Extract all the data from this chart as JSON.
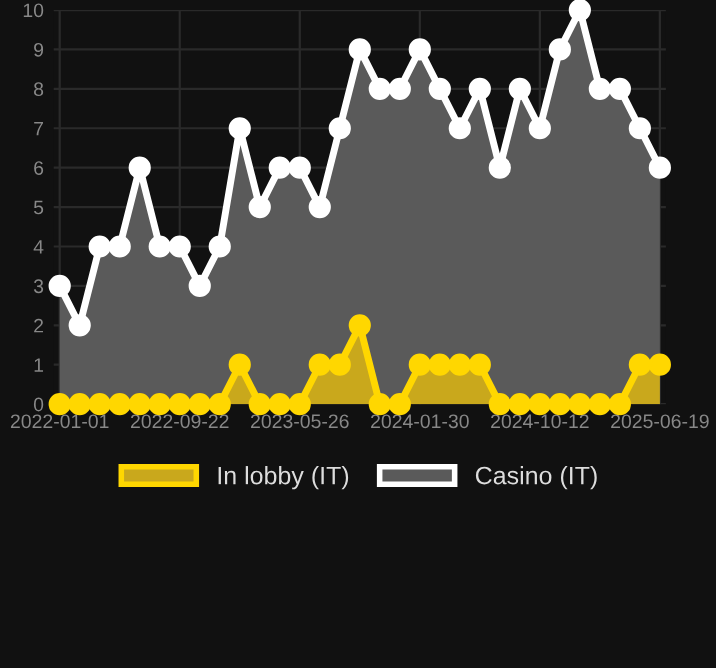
{
  "chart_data": {
    "type": "area",
    "categories": [
      "2022-01-01",
      null,
      null,
      null,
      null,
      null,
      "2022-09-22",
      null,
      null,
      null,
      null,
      null,
      "2023-05-26",
      null,
      null,
      null,
      null,
      null,
      "2024-01-30",
      null,
      null,
      null,
      null,
      null,
      "2024-10-12",
      null,
      null,
      null,
      null,
      null,
      "2025-06-19"
    ],
    "series": [
      {
        "name": "In lobby (IT)",
        "color": "#ffd700",
        "values": [
          0,
          0,
          0,
          0,
          0,
          0,
          0,
          0,
          0,
          1,
          0,
          0,
          0,
          1,
          1,
          2,
          0,
          0,
          1,
          1,
          1,
          1,
          0,
          0,
          0,
          0,
          0,
          0,
          0,
          1,
          1
        ]
      },
      {
        "name": "Casino (IT)",
        "color": "#ffffff",
        "values": [
          3,
          2,
          4,
          4,
          6,
          4,
          4,
          3,
          4,
          7,
          5,
          6,
          6,
          5,
          7,
          9,
          8,
          8,
          9,
          8,
          7,
          8,
          6,
          8,
          7,
          9,
          10,
          8,
          8,
          7,
          6
        ]
      }
    ],
    "ylim": [
      0,
      10
    ],
    "yticks": [
      0,
      1,
      2,
      3,
      4,
      5,
      6,
      7,
      8,
      9,
      10
    ],
    "grid": true,
    "legend": "bottom",
    "marker": "circle",
    "line_style": "solid"
  }
}
